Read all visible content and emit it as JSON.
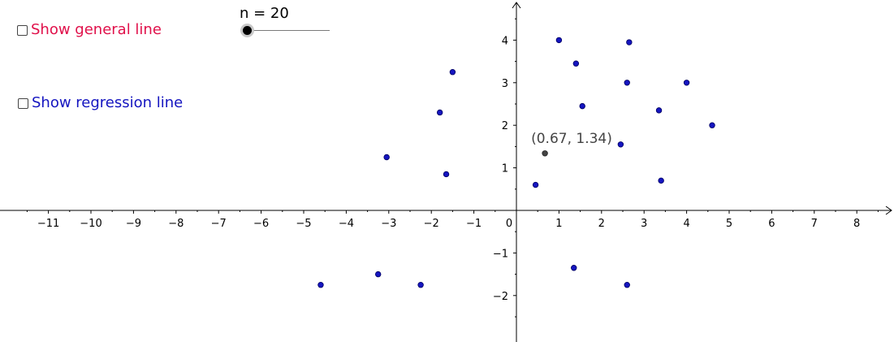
{
  "controls": {
    "general_line": {
      "label": "Show general line",
      "checked": false,
      "color": "#e0104a"
    },
    "regression_line": {
      "label": "Show regression line",
      "checked": false,
      "color": "#1515c0"
    },
    "slider": {
      "caption": "n = 20",
      "value": 20
    }
  },
  "colors": {
    "point": "#1515c0",
    "point_outline": "#000060",
    "highlight": "#444444",
    "axis": "#000000",
    "label_text": "#444444"
  },
  "chart_data": {
    "type": "scatter",
    "title": "",
    "xlabel": "",
    "ylabel": "",
    "xlim": [
      -11.9,
      8.6
    ],
    "ylim": [
      -3.0,
      4.8
    ],
    "grid": false,
    "x_ticks": [
      -11,
      -10,
      -9,
      -8,
      -7,
      -6,
      -5,
      -4,
      -3,
      -2,
      -1,
      0,
      1,
      2,
      3,
      4,
      5,
      6,
      7,
      8
    ],
    "y_ticks": [
      -2,
      -1,
      1,
      2,
      3,
      4
    ],
    "x_tick_labels": [
      "−11",
      "−10",
      "−9",
      "−8",
      "−7",
      "−6",
      "−5",
      "−4",
      "−3",
      "−2",
      "−1",
      "0",
      "1",
      "2",
      "3",
      "4",
      "5",
      "6",
      "7",
      "8"
    ],
    "y_tick_labels": [
      "−2",
      "−1",
      "1",
      "2",
      "3",
      "4"
    ],
    "series": [
      {
        "points": [
          [
            1.0,
            4.0
          ],
          [
            2.65,
            3.95
          ],
          [
            1.4,
            3.45
          ],
          [
            2.6,
            3.0
          ],
          [
            4.0,
            3.0
          ],
          [
            1.55,
            2.45
          ],
          [
            3.35,
            2.35
          ],
          [
            4.6,
            2.0
          ],
          [
            2.45,
            1.55
          ],
          [
            3.4,
            0.7
          ],
          [
            0.45,
            0.6
          ],
          [
            -1.5,
            3.25
          ],
          [
            -1.8,
            2.3
          ],
          [
            -3.05,
            1.25
          ],
          [
            -1.65,
            0.85
          ],
          [
            1.35,
            -1.35
          ],
          [
            2.6,
            -1.75
          ],
          [
            -4.6,
            -1.75
          ],
          [
            -3.25,
            -1.5
          ],
          [
            -2.25,
            -1.75
          ]
        ]
      }
    ],
    "highlight_point": {
      "x": 0.67,
      "y": 1.34,
      "label": "(0.67, 1.34)"
    }
  }
}
